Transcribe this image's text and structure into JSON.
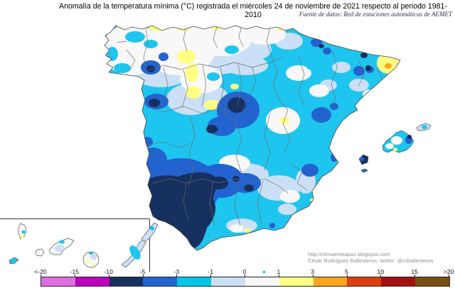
{
  "title": "Anomalía de la temperatura mínima (°C) registrada el miércoles 24 de noviembre de 2021 respecto al periodo 1981-2010",
  "subtitle": "Fuente de datos: Red de estaciones automáticas de AEMET",
  "credits": {
    "url": "http://climaenmapas.blogspot.com",
    "author": "César Rodríguez Ballesteros, twitter: @crballesteros"
  },
  "legend": {
    "tick_labels": [
      "<-20",
      "-15",
      "-10",
      "-5",
      "-3",
      "-1",
      "0",
      "1",
      "3",
      "5",
      "10",
      "15",
      ">20"
    ],
    "segment_colors": [
      "#E06EE0",
      "#BC00BC",
      "#16305F",
      "#2263CF",
      "#00C8E8",
      "#CBE0F6",
      "#F8F8F8",
      "#FFFF84",
      "#FFA51E",
      "#DC3D0F",
      "#A31111",
      "#7A4F12"
    ],
    "units": "°C"
  },
  "map": {
    "land_base_color": "#1EC5EF",
    "coast_color": "#444444",
    "province_border_color": "#6b6b6b",
    "inset_frame_color": "#333333",
    "regions_shown": "España peninsular, Islas Baleares e Islas Canarias (recuadro)"
  }
}
